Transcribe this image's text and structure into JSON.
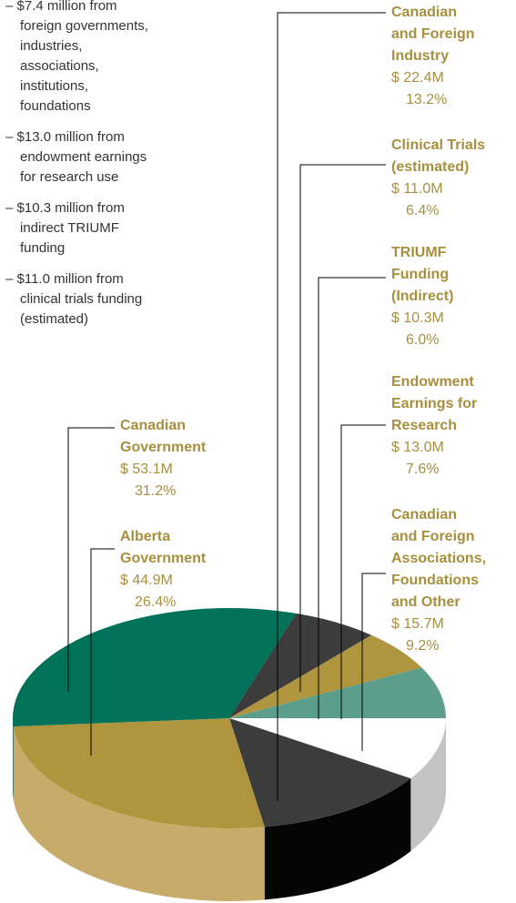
{
  "notes": [
    "– $7.4 million from foreign governments, industries, associations, institutions, foundations",
    "– $13.0 million from endowment earnings for research use",
    "– $10.3 million from indirect TRIUMF funding",
    "– $11.0 million from clinical trials funding (estimated)"
  ],
  "chart_data": {
    "type": "pie",
    "categories": [
      "Canadian and Foreign Associations, Foundations and Other",
      "Canadian and Foreign Industry",
      "Alberta Government",
      "Canadian Government",
      "Clinical Trials (estimated)",
      "TRIUMF Funding (Indirect)",
      "Endowment Earnings for Research"
    ],
    "values": [
      9.2,
      13.2,
      26.4,
      31.2,
      6.4,
      6.0,
      7.6
    ],
    "value_labels": [
      "9.2%",
      "13.2%",
      "26.4%",
      "31.2%",
      "6.4%",
      "6.0%",
      "7.6%"
    ],
    "amounts": [
      15.7,
      22.4,
      44.9,
      53.1,
      11.0,
      10.3,
      13.0
    ],
    "amount_labels": [
      "$ 15.7M",
      "$ 22.4M",
      "$ 44.9M",
      "$ 53.1M",
      "$ 11.0M",
      "$ 10.3M",
      "$ 13.0M"
    ],
    "colors": [
      "#ffffff",
      "#3c3c3c",
      "#b0953f",
      "#00725a",
      "#3c3c3c",
      "#b0953f",
      "#5c9e8c"
    ],
    "side_colors": [
      "#c4c4c4",
      "#050505",
      "#c6ab6b",
      "#005c46",
      "#222222",
      "#8f7830",
      "#3f7e6c"
    ]
  }
}
